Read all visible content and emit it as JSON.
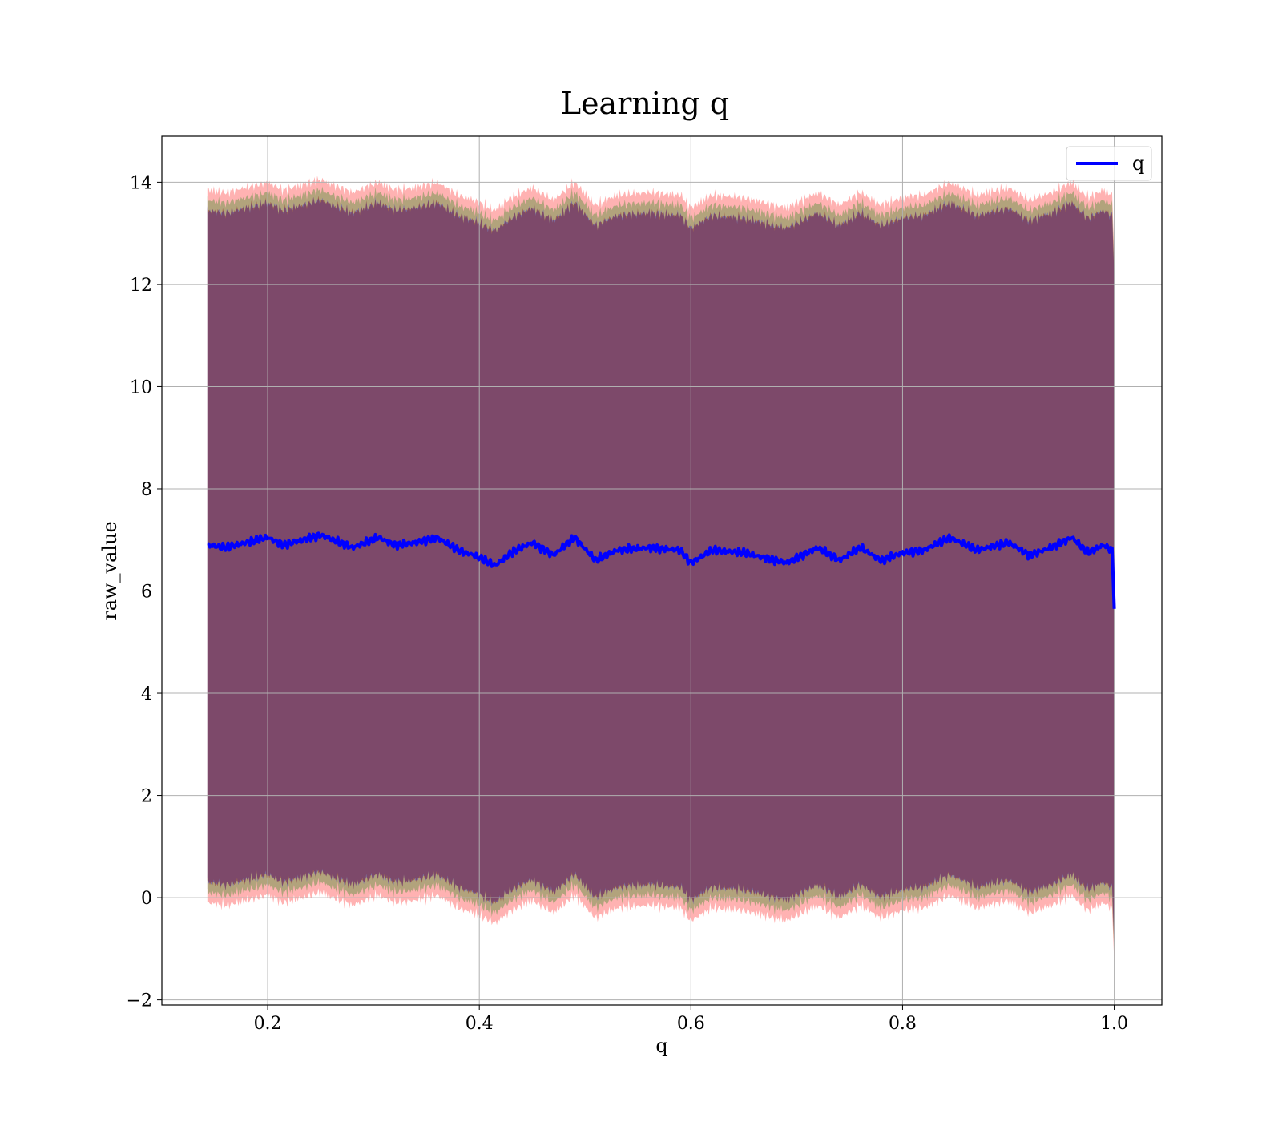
{
  "chart_data": {
    "type": "area",
    "title": "Learning q",
    "xlabel": "q",
    "ylabel": "raw_value",
    "xlim": [
      0.1,
      1.045
    ],
    "ylim": [
      -2.1,
      14.9
    ],
    "xticks": [
      0.2,
      0.4,
      0.6,
      0.8,
      1.0
    ],
    "xtick_labels": [
      "0.2",
      "0.4",
      "0.6",
      "0.8",
      "1.0"
    ],
    "yticks": [
      -2,
      0,
      2,
      4,
      6,
      8,
      10,
      12,
      14
    ],
    "ytick_labels": [
      "−2",
      "0",
      "2",
      "4",
      "6",
      "8",
      "10",
      "12",
      "14"
    ],
    "grid": true,
    "legend": {
      "position": "top-right",
      "entries": [
        "q"
      ]
    },
    "series": [
      {
        "name": "q",
        "color": "#0000ff",
        "x": [
          0.143,
          0.16,
          0.2,
          0.215,
          0.25,
          0.28,
          0.305,
          0.32,
          0.34,
          0.36,
          0.38,
          0.395,
          0.415,
          0.43,
          0.45,
          0.47,
          0.49,
          0.51,
          0.53,
          0.56,
          0.59,
          0.6,
          0.62,
          0.65,
          0.67,
          0.69,
          0.72,
          0.74,
          0.76,
          0.78,
          0.8,
          0.82,
          0.845,
          0.87,
          0.9,
          0.92,
          0.94,
          0.96,
          0.975,
          0.99,
          0.998,
          1.0
        ],
        "y": [
          6.9,
          6.85,
          7.05,
          6.9,
          7.1,
          6.85,
          7.05,
          6.9,
          6.95,
          7.05,
          6.8,
          6.7,
          6.5,
          6.75,
          6.95,
          6.7,
          7.05,
          6.6,
          6.8,
          6.85,
          6.8,
          6.55,
          6.8,
          6.75,
          6.65,
          6.55,
          6.85,
          6.6,
          6.85,
          6.6,
          6.75,
          6.8,
          7.05,
          6.8,
          6.95,
          6.7,
          6.85,
          7.05,
          6.75,
          6.9,
          6.8,
          5.65
        ]
      }
    ],
    "bands": [
      {
        "color": "#ff0000",
        "opacity": 0.3,
        "offset_upper": 6.95,
        "offset_lower": -7.0
      },
      {
        "color": "#008000",
        "opacity": 0.3,
        "offset_upper": 6.75,
        "offset_lower": -6.8
      },
      {
        "color": "#0000ff",
        "opacity": 0.3,
        "offset_upper": 6.55,
        "offset_lower": -6.6
      },
      {
        "color": "#800000",
        "opacity": 0.35,
        "offset_upper": 6.55,
        "offset_lower": -6.6
      }
    ]
  }
}
